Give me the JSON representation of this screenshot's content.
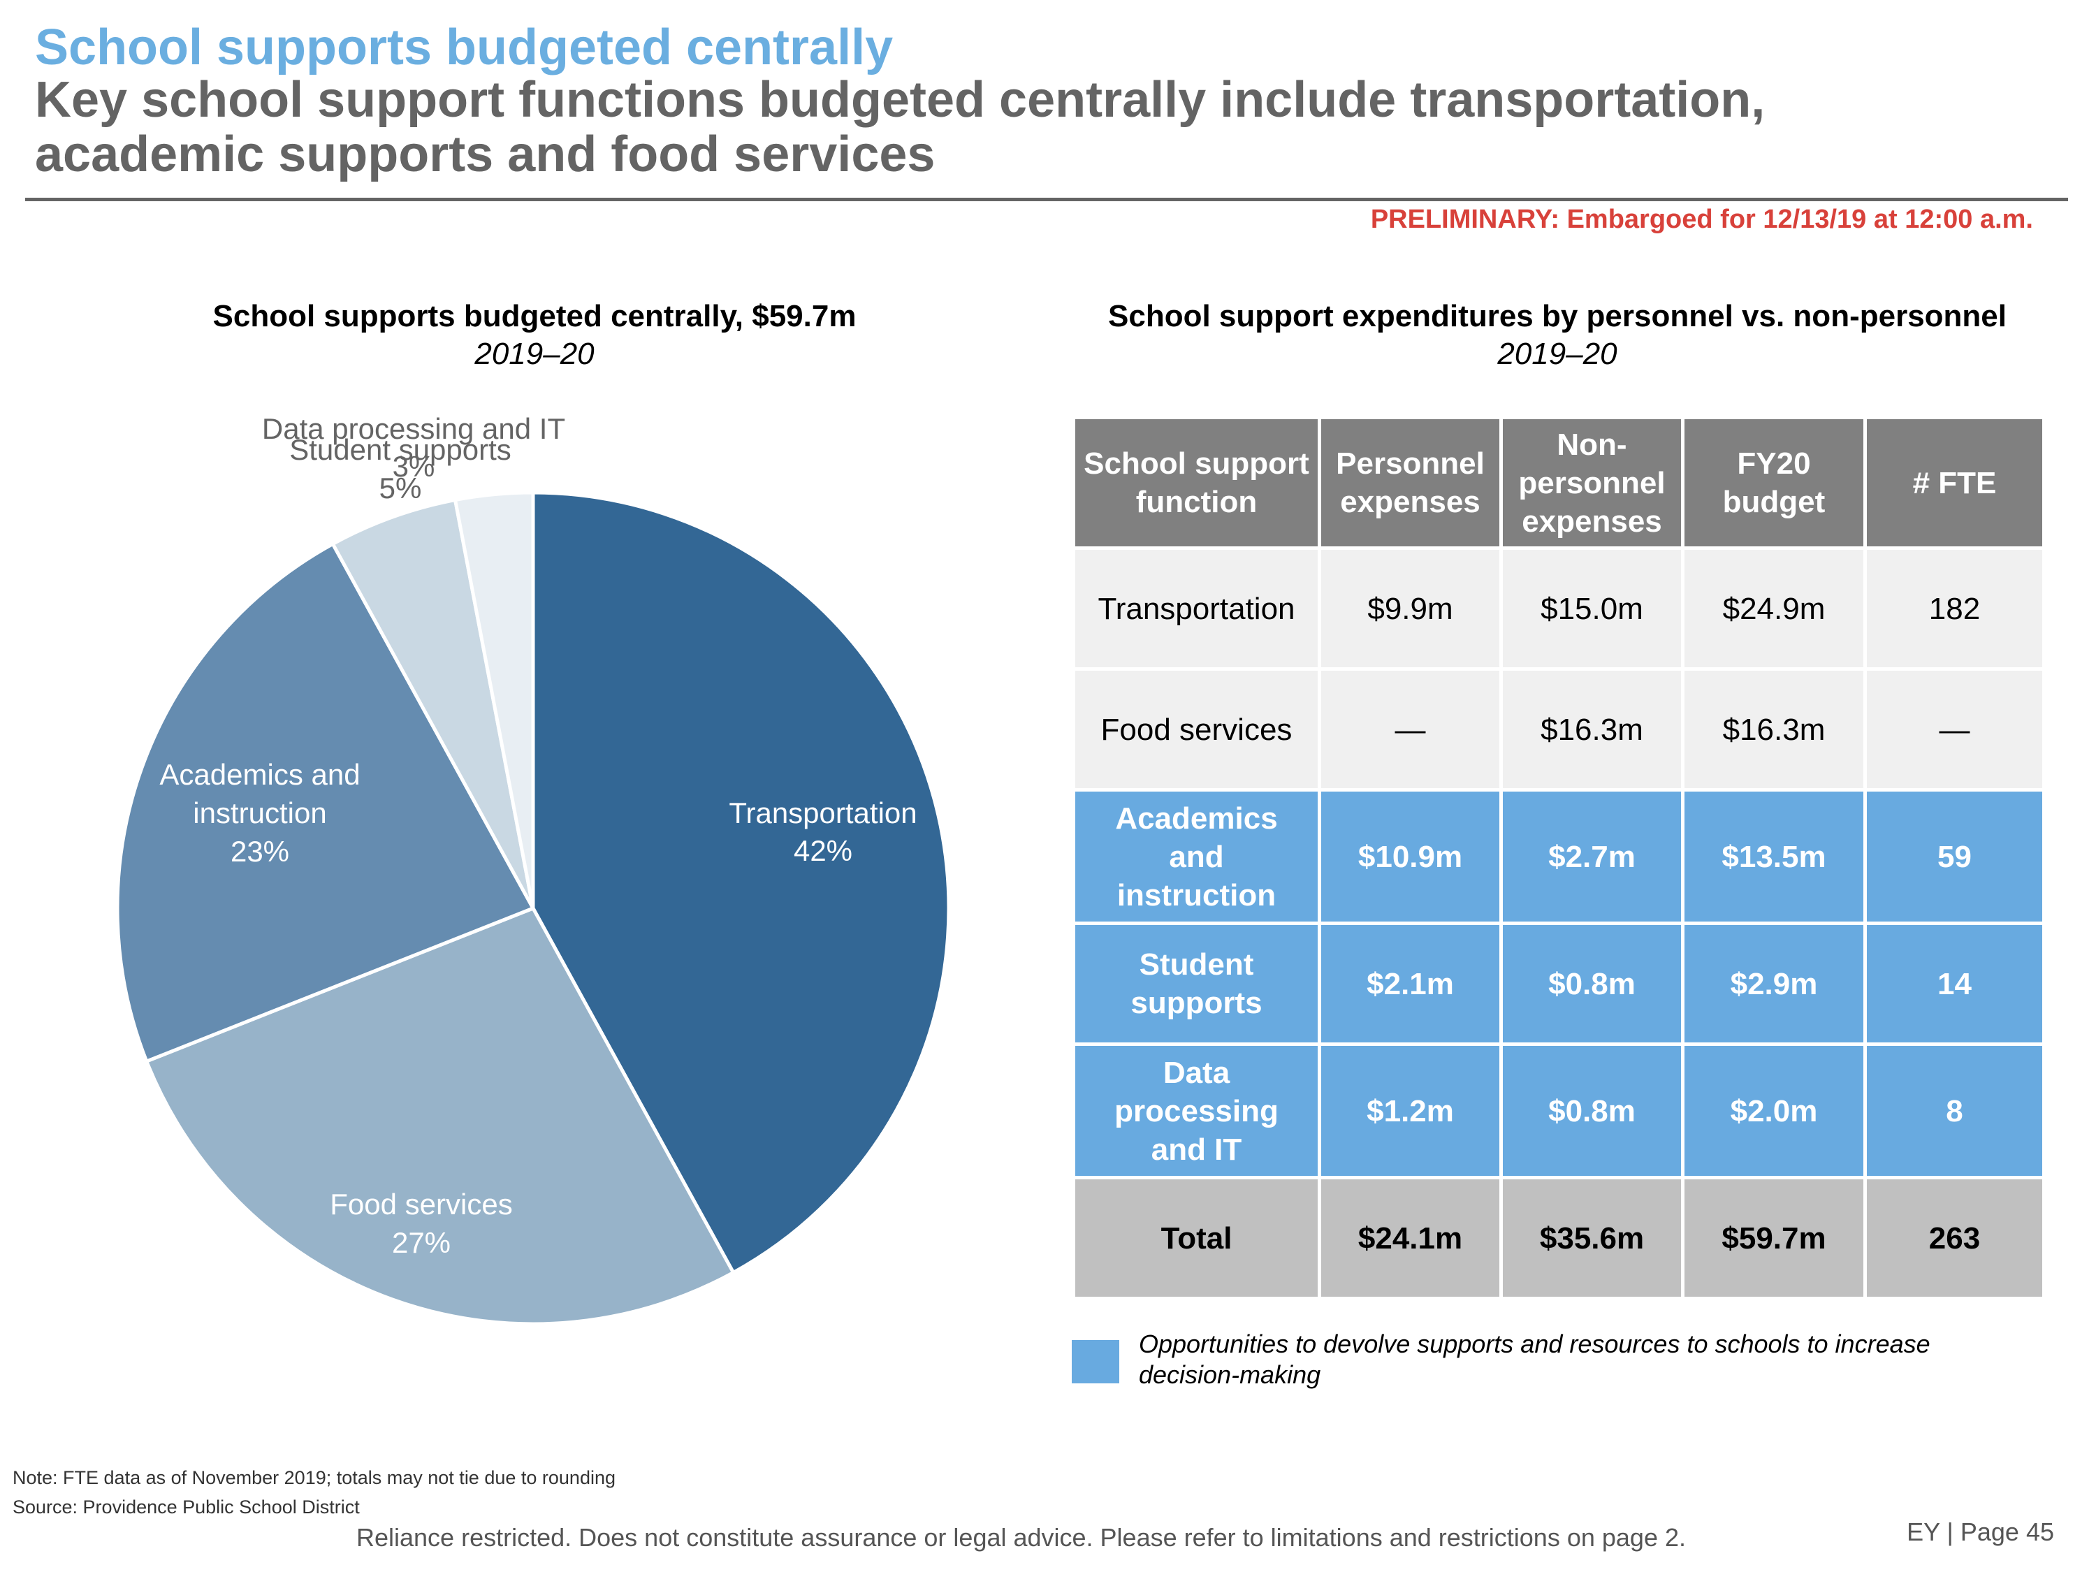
{
  "header": {
    "title": "School supports budgeted centrally",
    "subtitle": "Key school support functions budgeted centrally include transportation, academic supports and food services",
    "preliminary": "PRELIMINARY: Embargoed for 12/13/19 at 12:00 a.m."
  },
  "chart_data": {
    "type": "pie",
    "title": "School supports budgeted centrally, $59.7m",
    "subtitle": "2019–20",
    "unit": "percent",
    "slices": [
      {
        "label": "Transportation",
        "value": 42,
        "value_label": "42%",
        "color": "#336795",
        "label_color": "#ffffff"
      },
      {
        "label": "Food services",
        "value": 27,
        "value_label": "27%",
        "color": "#97b3c9",
        "label_color": "#ffffff"
      },
      {
        "label": "Academics and instruction",
        "value": 23,
        "value_label": "23%",
        "color": "#658cb0",
        "label_color": "#ffffff"
      },
      {
        "label": "Student supports",
        "value": 5,
        "value_label": "5%",
        "color": "#c9d8e3",
        "label_color": "#646464"
      },
      {
        "label": "Data processing and IT",
        "value": 3,
        "value_label": "3%",
        "color": "#e8eef3",
        "label_color": "#646464"
      }
    ],
    "start_angle": "12 o'clock",
    "direction": "clockwise"
  },
  "table": {
    "title": "School support expenditures by personnel vs. non-personnel",
    "subtitle": "2019–20",
    "columns": [
      "School support function",
      "Personnel expenses",
      "Non-personnel expenses",
      "FY20 budget",
      "# FTE"
    ],
    "rows": [
      {
        "function": "Transportation",
        "personnel": "$9.9m",
        "non_personnel": "$15.0m",
        "budget": "$24.9m",
        "fte": "182",
        "highlight": false
      },
      {
        "function": "Food services",
        "personnel": "—",
        "non_personnel": "$16.3m",
        "budget": "$16.3m",
        "fte": "—",
        "highlight": false
      },
      {
        "function": "Academics and instruction",
        "personnel": "$10.9m",
        "non_personnel": "$2.7m",
        "budget": "$13.5m",
        "fte": "59",
        "highlight": true
      },
      {
        "function": "Student supports",
        "personnel": "$2.1m",
        "non_personnel": "$0.8m",
        "budget": "$2.9m",
        "fte": "14",
        "highlight": true
      },
      {
        "function": "Data processing and IT",
        "personnel": "$1.2m",
        "non_personnel": "$0.8m",
        "budget": "$2.0m",
        "fte": "8",
        "highlight": true
      }
    ],
    "total": {
      "function": "Total",
      "personnel": "$24.1m",
      "non_personnel": "$35.6m",
      "budget": "$59.7m",
      "fte": "263"
    },
    "legend": "Opportunities to devolve supports and resources to schools to increase decision-making",
    "colors": {
      "header": "#808080",
      "plain": "#f0f0f0",
      "highlight": "#68aae0",
      "total": "#c0c0c0"
    }
  },
  "footer": {
    "note": "Note: FTE data as of November 2019; totals may not tie due to rounding",
    "source": "Source: Providence Public School District",
    "disclaimer": "Reliance restricted. Does not constitute assurance or legal advice. Please refer to limitations and restrictions on page 2.",
    "page": "EY | Page 45"
  }
}
